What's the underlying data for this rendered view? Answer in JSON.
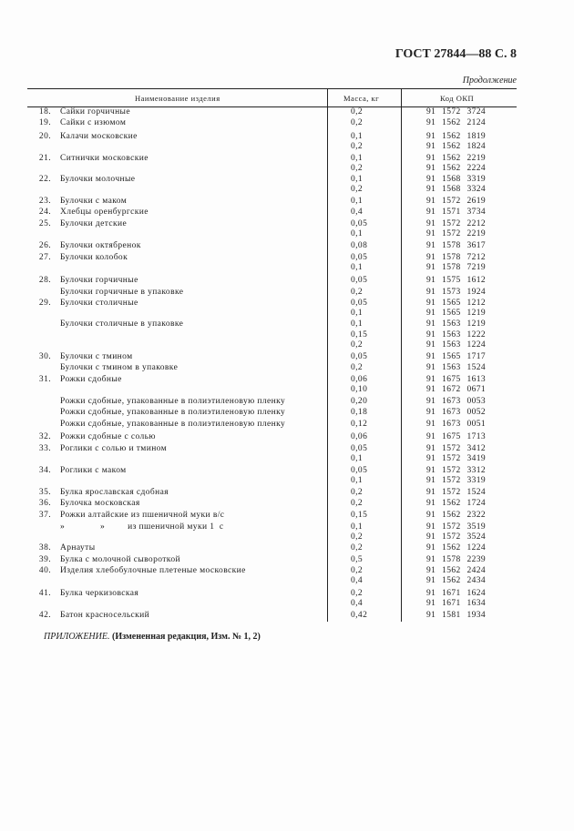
{
  "header": {
    "doc_title": "ГОСТ 27844—88 С. 8",
    "continuation": "Продолжение"
  },
  "table": {
    "columns": [
      "Наименование изделия",
      "Масса, кг",
      "Код ОКП"
    ],
    "rows": [
      {
        "num": "18.",
        "name": "Сайки горчичные",
        "mass": "0,2",
        "code": "91 1572 3724"
      },
      {
        "num": "19.",
        "name": "Сайки с изюмом",
        "mass": "0,2",
        "code": "91 1562 2124"
      },
      {
        "num": "20.",
        "name": "Калачи московские",
        "mass": "0,1",
        "code": "91 1562 1819"
      },
      {
        "num": "",
        "name": "",
        "mass": "0,2",
        "code": "91 1562 1824"
      },
      {
        "num": "21.",
        "name": "Ситнички московские",
        "mass": "0,1",
        "code": "91 1562 2219"
      },
      {
        "num": "",
        "name": "",
        "mass": "0,2",
        "code": "91 1562 2224"
      },
      {
        "num": "22.",
        "name": "Булочки молочные",
        "mass": "0,1",
        "code": "91 1568 3319"
      },
      {
        "num": "",
        "name": "",
        "mass": "0,2",
        "code": "91 1568 3324"
      },
      {
        "num": "23.",
        "name": "Булочки с маком",
        "mass": "0,1",
        "code": "91 1572 2619"
      },
      {
        "num": "24.",
        "name": "Хлебцы оренбургские",
        "mass": "0,4",
        "code": "91 1571 3734"
      },
      {
        "num": "25.",
        "name": "Булочки детские",
        "mass": "0,05",
        "code": "91 1572 2212"
      },
      {
        "num": "",
        "name": "",
        "mass": "0,1",
        "code": "91 1572 2219"
      },
      {
        "num": "26.",
        "name": "Булочки октябренок",
        "mass": "0,08",
        "code": "91 1578 3617"
      },
      {
        "num": "27.",
        "name": "Булочки колобок",
        "mass": "0,05",
        "code": "91 1578 7212"
      },
      {
        "num": "",
        "name": "",
        "mass": "0,1",
        "code": "91 1578 7219"
      },
      {
        "num": "28.",
        "name": "Булочки горчичные",
        "mass": "0,05",
        "code": "91 1575 1612"
      },
      {
        "num": "",
        "name": "Булочки горчичные в упаковке",
        "mass": "0,2",
        "code": "91 1573 1924"
      },
      {
        "num": "29.",
        "name": "Булочки столичные",
        "mass": "0,05",
        "code": "91 1565 1212"
      },
      {
        "num": "",
        "name": "",
        "mass": "0,1",
        "code": "91 1565 1219"
      },
      {
        "num": "",
        "name": "Булочки столичные в упаковке",
        "mass": "0,1",
        "code": "91 1563 1219"
      },
      {
        "num": "",
        "name": "",
        "mass": "0,15",
        "code": "91 1563 1222"
      },
      {
        "num": "",
        "name": "",
        "mass": "0,2",
        "code": "91 1563 1224"
      },
      {
        "num": "30.",
        "name": "Булочки с тмином",
        "mass": "0,05",
        "code": "91 1565 1717"
      },
      {
        "num": "",
        "name": "Булочки с тмином в упаковке",
        "mass": "0,2",
        "code": "91 1563 1524"
      },
      {
        "num": "31.",
        "name": "Рожки сдобные",
        "mass": "0,06",
        "code": "91 1675 1613"
      },
      {
        "num": "",
        "name": "",
        "mass": "0,10",
        "code": "91 1672 0671"
      },
      {
        "num": "",
        "name": "Рожки сдобные, упакованные в полиэтиленовую пленку",
        "mass": "0,20",
        "code": "91 1673 0053"
      },
      {
        "num": "",
        "name": "Рожки сдобные, упакованные в полиэтиленовую пленку",
        "mass": "0,18",
        "code": "91 1673 0052"
      },
      {
        "num": "",
        "name": "Рожки сдобные, упакованные в полиэтиленовую пленку",
        "mass": "0,12",
        "code": "91 1673 0051"
      },
      {
        "num": "32.",
        "name": "Рожки сдобные с солью",
        "mass": "0,06",
        "code": "91 1675 1713"
      },
      {
        "num": "33.",
        "name": "Роглики с солью и тмином",
        "mass": "0,05",
        "code": "91 1572 3412"
      },
      {
        "num": "",
        "name": "",
        "mass": "0,1",
        "code": "91 1572 3419"
      },
      {
        "num": "34.",
        "name": "Роглики с маком",
        "mass": "0,05",
        "code": "91 1572 3312"
      },
      {
        "num": "",
        "name": "",
        "mass": "0,1",
        "code": "91 1572 3319"
      },
      {
        "num": "35.",
        "name": "Булка ярославская сдобная",
        "mass": "0,2",
        "code": "91 1572 1524"
      },
      {
        "num": "36.",
        "name": "Булочка московская",
        "mass": "0,2",
        "code": "91 1562 1724"
      },
      {
        "num": "37.",
        "name": "Рожки алтайские из пшеничной муки в/с",
        "mass": "0,15",
        "code": "91 1562 2322"
      },
      {
        "num": "",
        "name": "»              »         из пшеничной муки 1  с",
        "mass": "0,1",
        "code": "91 1572 3519"
      },
      {
        "num": "",
        "name": "",
        "mass": "0,2",
        "code": "91 1572 3524"
      },
      {
        "num": "38.",
        "name": "Арнауты",
        "mass": "0,2",
        "code": "91 1562 1224"
      },
      {
        "num": "39.",
        "name": "Булка с молочной сывороткой",
        "mass": "0,5",
        "code": "91 1578 2239"
      },
      {
        "num": "40.",
        "name": "Изделия хлебобулочные плетеные московские",
        "mass": "0,2",
        "code": "91 1562 2424"
      },
      {
        "num": "",
        "name": "",
        "mass": "0,4",
        "code": "91 1562 2434"
      },
      {
        "num": "41.",
        "name": "Булка черкизовская",
        "mass": "0,2",
        "code": "91 1671 1624"
      },
      {
        "num": "",
        "name": "",
        "mass": "0,4",
        "code": "91 1671 1634"
      },
      {
        "num": "42.",
        "name": "Батон красносельский",
        "mass": "0,42",
        "code": "91 1581 1934"
      }
    ]
  },
  "footer": {
    "label": "ПРИЛОЖЕНИЕ.",
    "note": "(Измененная редакция, Изм. № 1, 2)"
  }
}
